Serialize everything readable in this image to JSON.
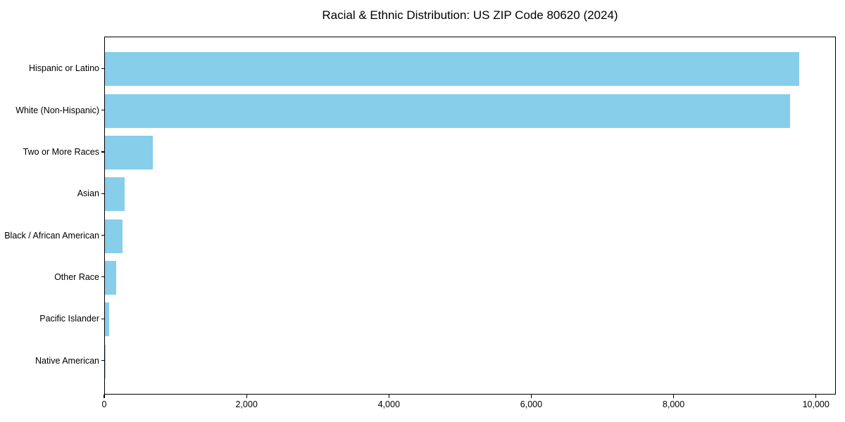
{
  "chart_data": {
    "type": "bar",
    "orientation": "horizontal",
    "title": "Racial & Ethnic Distribution: US ZIP Code 80620 (2024)",
    "categories": [
      "Hispanic or Latino",
      "White (Non-Hispanic)",
      "Two or More Races",
      "Asian",
      "Black / African American",
      "Other Race",
      "Pacific Islander",
      "Native American"
    ],
    "values": [
      9770,
      9650,
      670,
      275,
      245,
      155,
      55,
      10
    ],
    "xlabel": "",
    "ylabel": "",
    "xlim": [
      0,
      10280
    ],
    "xticks": [
      0,
      2000,
      4000,
      6000,
      8000,
      10000
    ],
    "xtick_labels": [
      "0",
      "2,000",
      "4,000",
      "6,000",
      "8,000",
      "10,000"
    ],
    "bar_color": "#87CEEB",
    "axis_color": "#000000",
    "background_color": "#ffffff",
    "grid": false,
    "legend": null,
    "sort_order": "descending"
  }
}
